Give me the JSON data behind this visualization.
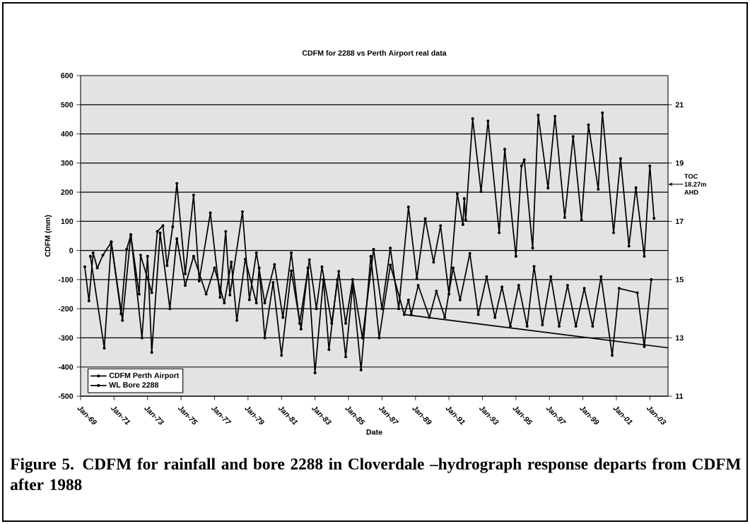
{
  "chart_data": {
    "type": "line",
    "title": "CDFM for 2288 vs Perth Airport real data",
    "xlabel": "Date",
    "ylabel": "CDFM (mm)",
    "xlim": [
      "1969-01",
      "2004-02"
    ],
    "ylim": [
      -500,
      600
    ],
    "y2lim": [
      11,
      22
    ],
    "xticks": [
      {
        "value": "1969-01",
        "label": "Jan-69"
      },
      {
        "value": "1971-01",
        "label": "Jan-71"
      },
      {
        "value": "1973-01",
        "label": "Jan-73"
      },
      {
        "value": "1975-01",
        "label": "Jan-75"
      },
      {
        "value": "1977-01",
        "label": "Jan-77"
      },
      {
        "value": "1979-01",
        "label": "Jan-79"
      },
      {
        "value": "1981-01",
        "label": "Jan-81"
      },
      {
        "value": "1983-01",
        "label": "Jan-83"
      },
      {
        "value": "1985-01",
        "label": "Jan-85"
      },
      {
        "value": "1987-01",
        "label": "Jan-87"
      },
      {
        "value": "1989-01",
        "label": "Jan-89"
      },
      {
        "value": "1991-01",
        "label": "Jan-91"
      },
      {
        "value": "1993-01",
        "label": "Jan-93"
      },
      {
        "value": "1995-01",
        "label": "Jan-95"
      },
      {
        "value": "1997-01",
        "label": "Jan-97"
      },
      {
        "value": "1999-01",
        "label": "Jan-99"
      },
      {
        "value": "2001-01",
        "label": "Jan-01"
      },
      {
        "value": "2003-01",
        "label": "Jan-03"
      }
    ],
    "yticks": [
      -500,
      -400,
      -300,
      -200,
      -100,
      0,
      100,
      200,
      300,
      400,
      500,
      600
    ],
    "y2ticks": [
      11,
      13,
      15,
      17,
      19,
      21
    ],
    "grid": "y",
    "legend": "bottom left",
    "marker": "circle",
    "series": [
      {
        "name": "CDFM Perth Airport",
        "color": "#000000",
        "x": [
          "1969-04",
          "1969-07",
          "1969-10",
          "1970-01",
          "1970-05",
          "1970-11",
          "1971-06",
          "1971-10",
          "1972-01",
          "1972-07",
          "1972-08",
          "1973-04",
          "1973-08",
          "1973-12",
          "1974-03",
          "1974-07",
          "1974-10",
          "1975-04",
          "1975-10",
          "1976-02",
          "1976-10",
          "1977-05",
          "1977-09",
          "1977-12",
          "1978-09",
          "1979-02",
          "1979-07",
          "1980-01",
          "1980-08",
          "1981-02",
          "1981-08",
          "1982-02",
          "1982-09",
          "1983-02",
          "1983-06",
          "1984-01",
          "1984-06",
          "1984-11",
          "1985-04",
          "1985-11",
          "1986-07",
          "1987-01",
          "1987-07",
          "1988-01",
          "1988-08",
          "1989-02",
          "1989-08",
          "1990-02",
          "1990-07",
          "1991-01",
          "1991-07",
          "1991-11",
          "1991-12",
          "1992-01",
          "1992-06",
          "1992-12",
          "1993-05",
          "1994-01",
          "1994-05",
          "1995-01",
          "1995-05",
          "1995-07",
          "1996-01",
          "1996-05",
          "1996-12",
          "1997-05",
          "1997-12",
          "1998-06",
          "1998-12",
          "1999-05",
          "1999-12",
          "2000-03",
          "2000-11",
          "2001-04",
          "2001-10",
          "2002-03",
          "2002-09",
          "2003-01",
          "2003-04"
        ],
        "values": [
          -56,
          -173,
          -8,
          -60,
          -16,
          28,
          -217,
          4,
          53,
          -150,
          -16,
          -145,
          65,
          85,
          -52,
          81,
          230,
          -80,
          190,
          -105,
          129,
          -161,
          65,
          -153,
          133,
          -169,
          -8,
          -180,
          -48,
          -230,
          -8,
          -250,
          -32,
          -200,
          -56,
          -250,
          -72,
          -250,
          -100,
          -300,
          4,
          -200,
          8,
          -200,
          149,
          -96,
          109,
          -40,
          85,
          -150,
          194,
          89,
          178,
          105,
          452,
          202,
          444,
          61,
          347,
          -20,
          290,
          311,
          8,
          464,
          214,
          460,
          113,
          391,
          105,
          431,
          210,
          472,
          61,
          315,
          15,
          215,
          -20,
          290,
          110
        ]
      },
      {
        "name": "WL Bore 2288",
        "color": "#000000",
        "axis": "y2",
        "x": [
          "1969-08",
          "1970-06",
          "1970-11",
          "1971-07",
          "1972-01",
          "1972-09",
          "1973-01",
          "1973-04",
          "1973-10",
          "1974-05",
          "1974-10",
          "1975-04",
          "1975-10",
          "1976-07",
          "1977-01",
          "1977-08",
          "1978-01",
          "1978-05",
          "1978-11",
          "1979-07",
          "1979-09",
          "1980-01",
          "1980-07",
          "1981-01",
          "1981-08",
          "1982-03",
          "1982-08",
          "1983-01",
          "1983-07",
          "1983-11",
          "1984-05",
          "1984-11",
          "1985-04",
          "1985-10",
          "1986-05",
          "1986-11",
          "1987-07",
          "1988-05",
          "1988-08",
          "1988-10",
          "1989-03",
          "1989-11",
          "1990-04",
          "1990-10",
          "1991-04",
          "1991-09",
          "1992-04",
          "1992-10",
          "1993-04",
          "1993-10",
          "1994-03",
          "1994-09",
          "1995-03",
          "1995-09",
          "1996-02",
          "1996-08",
          "1997-02",
          "1997-08",
          "1998-02",
          "1998-08",
          "1999-02",
          "1999-08",
          "2000-02",
          "2000-10",
          "2001-03",
          "2002-04",
          "2002-09",
          "2003-02"
        ],
        "values": [
          15.8,
          12.65,
          16.3,
          13.6,
          16.55,
          13.0,
          15.8,
          12.5,
          16.6,
          14.0,
          16.4,
          14.8,
          15.8,
          14.5,
          15.4,
          14.2,
          15.6,
          13.6,
          15.7,
          14.2,
          15.4,
          13.0,
          14.9,
          12.4,
          15.3,
          13.3,
          15.4,
          11.8,
          15.0,
          12.6,
          15.0,
          12.35,
          14.8,
          11.9,
          15.8,
          13.0,
          15.5,
          13.8,
          14.3,
          13.8,
          14.8,
          13.7,
          14.6,
          13.7,
          15.4,
          14.3,
          15.9,
          13.8,
          15.1,
          13.7,
          14.75,
          13.4,
          14.8,
          13.4,
          15.45,
          13.45,
          15.1,
          13.4,
          14.8,
          13.4,
          14.7,
          13.4,
          15.1,
          12.4,
          14.7,
          14.55,
          12.7,
          15.0
        ]
      },
      {
        "color": "#000000",
        "axis": "y2",
        "type": "line",
        "marker": "none",
        "x": [
          "1988-05",
          "2004-02"
        ],
        "values": [
          13.8,
          12.66
        ]
      }
    ],
    "annotations": [
      "TOC 18.27m AHD",
      "Figure 5. CDFM for rainfall and bore 2288 in Cloverdale –hydrograph response departs from CDFM after 1988"
    ]
  }
}
